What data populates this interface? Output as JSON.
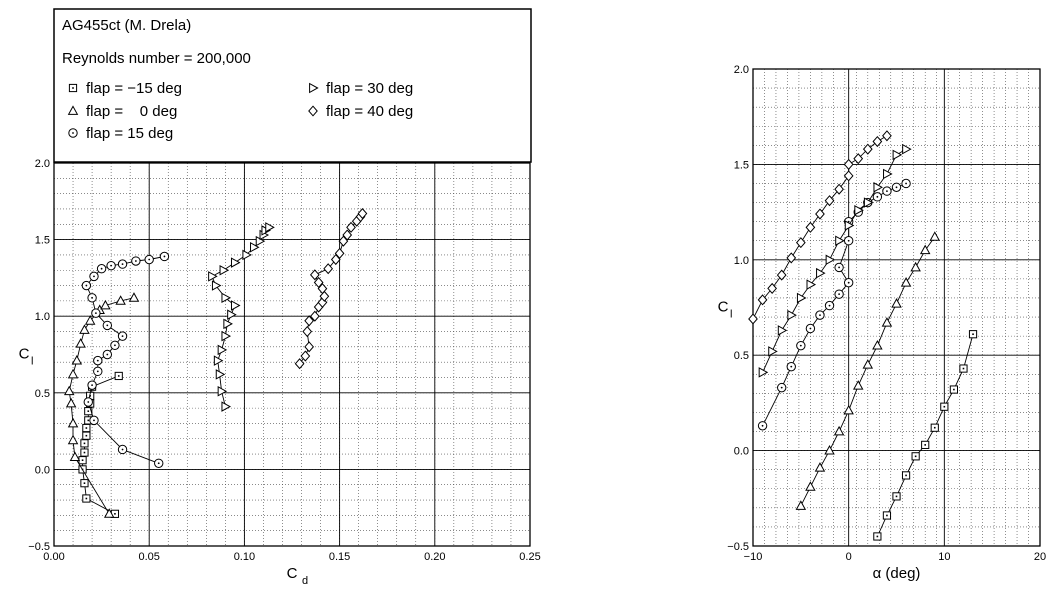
{
  "legend": {
    "title": "AG455ct (M. Drela)",
    "subtitle": "Reynolds number = 200,000",
    "entries": [
      {
        "label": "flap = −15 deg",
        "marker": "square"
      },
      {
        "label": "flap =    0 deg",
        "marker": "triangle-up"
      },
      {
        "label": "flap = 15 deg",
        "marker": "circle"
      },
      {
        "label": "flap = 30 deg",
        "marker": "triangle-right"
      },
      {
        "label": "flap = 40 deg",
        "marker": "diamond"
      }
    ]
  },
  "chart_data": [
    {
      "type": "line",
      "title": "",
      "xlabel": "C",
      "xlabel_sub": "d",
      "ylabel": "C",
      "ylabel_sub": "l",
      "xlim": [
        0.0,
        0.25
      ],
      "ylim": [
        -0.5,
        2.0
      ],
      "xticks": [
        0.0,
        0.05,
        0.1,
        0.15,
        0.2,
        0.25
      ],
      "xtick_labels": [
        "0.00",
        "0.05",
        "0.10",
        "0.15",
        "0.20",
        "0.25"
      ],
      "yticks": [
        -0.5,
        0.0,
        0.5,
        1.0,
        1.5,
        2.0
      ],
      "ytick_labels": [
        "−0.5",
        "0.0",
        "0.5",
        "1.0",
        "1.5",
        "2.0"
      ],
      "grid": true,
      "series": [
        {
          "name": "flap = −15 deg",
          "marker": "square",
          "points": [
            [
              0.032,
              -0.29
            ],
            [
              0.017,
              -0.19
            ],
            [
              0.016,
              -0.09
            ],
            [
              0.015,
              0.0
            ],
            [
              0.015,
              0.06
            ],
            [
              0.016,
              0.11
            ],
            [
              0.016,
              0.17
            ],
            [
              0.017,
              0.22
            ],
            [
              0.017,
              0.27
            ],
            [
              0.018,
              0.32
            ],
            [
              0.018,
              0.38
            ],
            [
              0.019,
              0.43
            ],
            [
              0.019,
              0.48
            ],
            [
              0.02,
              0.54
            ],
            [
              0.034,
              0.61
            ]
          ]
        },
        {
          "name": "flap = 0 deg",
          "marker": "triangle-up",
          "points": [
            [
              0.029,
              -0.29
            ],
            [
              0.011,
              0.08
            ],
            [
              0.01,
              0.19
            ],
            [
              0.01,
              0.3
            ],
            [
              0.009,
              0.43
            ],
            [
              0.008,
              0.51
            ],
            [
              0.01,
              0.62
            ],
            [
              0.012,
              0.71
            ],
            [
              0.014,
              0.82
            ],
            [
              0.016,
              0.91
            ],
            [
              0.019,
              0.97
            ],
            [
              0.024,
              1.04
            ],
            [
              0.027,
              1.07
            ],
            [
              0.035,
              1.1
            ],
            [
              0.042,
              1.12
            ]
          ]
        },
        {
          "name": "flap = 15 deg",
          "marker": "circle",
          "points": [
            [
              0.055,
              0.04
            ],
            [
              0.036,
              0.13
            ],
            [
              0.021,
              0.32
            ],
            [
              0.018,
              0.44
            ],
            [
              0.02,
              0.55
            ],
            [
              0.023,
              0.64
            ],
            [
              0.023,
              0.71
            ],
            [
              0.028,
              0.75
            ],
            [
              0.032,
              0.81
            ],
            [
              0.036,
              0.87
            ],
            [
              0.028,
              0.94
            ],
            [
              0.022,
              1.02
            ],
            [
              0.02,
              1.12
            ],
            [
              0.017,
              1.2
            ],
            [
              0.021,
              1.26
            ],
            [
              0.025,
              1.31
            ],
            [
              0.03,
              1.33
            ],
            [
              0.036,
              1.34
            ],
            [
              0.043,
              1.36
            ],
            [
              0.05,
              1.37
            ],
            [
              0.058,
              1.39
            ]
          ]
        },
        {
          "name": "flap = 30 deg",
          "marker": "triangle-right",
          "points": [
            [
              0.09,
              0.41
            ],
            [
              0.088,
              0.51
            ],
            [
              0.087,
              0.62
            ],
            [
              0.086,
              0.71
            ],
            [
              0.088,
              0.78
            ],
            [
              0.09,
              0.87
            ],
            [
              0.091,
              0.95
            ],
            [
              0.093,
              1.01
            ],
            [
              0.095,
              1.07
            ],
            [
              0.09,
              1.12
            ],
            [
              0.085,
              1.2
            ],
            [
              0.083,
              1.26
            ],
            [
              0.089,
              1.3
            ],
            [
              0.095,
              1.35
            ],
            [
              0.101,
              1.4
            ],
            [
              0.105,
              1.45
            ],
            [
              0.108,
              1.49
            ],
            [
              0.11,
              1.53
            ],
            [
              0.111,
              1.56
            ],
            [
              0.113,
              1.58
            ]
          ]
        },
        {
          "name": "flap = 40 deg",
          "marker": "diamond",
          "points": [
            [
              0.129,
              0.69
            ],
            [
              0.132,
              0.74
            ],
            [
              0.134,
              0.8
            ],
            [
              0.133,
              0.9
            ],
            [
              0.134,
              0.97
            ],
            [
              0.137,
              1.0
            ],
            [
              0.139,
              1.06
            ],
            [
              0.141,
              1.09
            ],
            [
              0.142,
              1.13
            ],
            [
              0.141,
              1.18
            ],
            [
              0.139,
              1.22
            ],
            [
              0.137,
              1.27
            ],
            [
              0.144,
              1.31
            ],
            [
              0.148,
              1.37
            ],
            [
              0.15,
              1.41
            ],
            [
              0.152,
              1.49
            ],
            [
              0.154,
              1.53
            ],
            [
              0.156,
              1.58
            ],
            [
              0.159,
              1.62
            ],
            [
              0.161,
              1.65
            ],
            [
              0.162,
              1.67
            ]
          ]
        }
      ]
    },
    {
      "type": "line",
      "title": "",
      "xlabel": "α (deg)",
      "ylabel": "C",
      "ylabel_sub": "l",
      "xlim": [
        -10,
        20
      ],
      "ylim": [
        -0.5,
        2.0
      ],
      "xticks": [
        -10,
        0,
        10,
        20
      ],
      "xtick_labels": [
        "−10",
        "0",
        "10",
        "20"
      ],
      "yticks": [
        -0.5,
        0.0,
        0.5,
        1.0,
        1.5,
        2.0
      ],
      "ytick_labels": [
        "−0.5",
        "0.0",
        "0.5",
        "1.0",
        "1.5",
        "2.0"
      ],
      "grid": true,
      "series": [
        {
          "name": "flap = −15 deg",
          "marker": "square",
          "points": [
            [
              3,
              -0.45
            ],
            [
              4,
              -0.34
            ],
            [
              5,
              -0.24
            ],
            [
              6,
              -0.13
            ],
            [
              7,
              -0.03
            ],
            [
              8,
              0.03
            ],
            [
              9,
              0.12
            ],
            [
              10,
              0.23
            ],
            [
              11,
              0.32
            ],
            [
              12,
              0.43
            ],
            [
              13,
              0.61
            ]
          ]
        },
        {
          "name": "flap = 0 deg",
          "marker": "triangle-up",
          "points": [
            [
              -5,
              -0.29
            ],
            [
              -4,
              -0.19
            ],
            [
              -3,
              -0.09
            ],
            [
              -2,
              0.0
            ],
            [
              -1,
              0.1
            ],
            [
              0,
              0.21
            ],
            [
              1,
              0.34
            ],
            [
              2,
              0.45
            ],
            [
              3,
              0.55
            ],
            [
              4,
              0.67
            ],
            [
              5,
              0.77
            ],
            [
              6,
              0.88
            ],
            [
              7,
              0.96
            ],
            [
              8,
              1.05
            ],
            [
              9,
              1.12
            ]
          ]
        },
        {
          "name": "flap = 15 deg",
          "marker": "circle",
          "points": [
            [
              -9,
              0.13
            ],
            [
              -7,
              0.33
            ],
            [
              -6,
              0.44
            ],
            [
              -5,
              0.55
            ],
            [
              -4,
              0.64
            ],
            [
              -3,
              0.71
            ],
            [
              -2,
              0.76
            ],
            [
              -1,
              0.82
            ],
            [
              0,
              0.88
            ],
            [
              -1,
              0.96
            ],
            [
              0,
              1.1
            ],
            [
              0,
              1.2
            ],
            [
              1,
              1.25
            ],
            [
              2,
              1.3
            ],
            [
              3,
              1.33
            ],
            [
              4,
              1.36
            ],
            [
              5,
              1.38
            ],
            [
              6,
              1.4
            ]
          ]
        },
        {
          "name": "flap = 30 deg",
          "marker": "triangle-right",
          "points": [
            [
              -9,
              0.41
            ],
            [
              -8,
              0.52
            ],
            [
              -7,
              0.63
            ],
            [
              -6,
              0.71
            ],
            [
              -5,
              0.8
            ],
            [
              -4,
              0.87
            ],
            [
              -3,
              0.93
            ],
            [
              -2,
              1.0
            ],
            [
              -1,
              1.1
            ],
            [
              0,
              1.18
            ],
            [
              1,
              1.26
            ],
            [
              2,
              1.3
            ],
            [
              3,
              1.38
            ],
            [
              4,
              1.45
            ],
            [
              5,
              1.55
            ],
            [
              6,
              1.58
            ]
          ]
        },
        {
          "name": "flap = 40 deg",
          "marker": "diamond",
          "points": [
            [
              -10,
              0.69
            ],
            [
              -9,
              0.79
            ],
            [
              -8,
              0.85
            ],
            [
              -7,
              0.92
            ],
            [
              -6,
              1.01
            ],
            [
              -5,
              1.09
            ],
            [
              -4,
              1.17
            ],
            [
              -3,
              1.24
            ],
            [
              -2,
              1.31
            ],
            [
              -1,
              1.37
            ],
            [
              0,
              1.44
            ],
            [
              0,
              1.5
            ],
            [
              1,
              1.53
            ],
            [
              2,
              1.58
            ],
            [
              3,
              1.62
            ],
            [
              4,
              1.65
            ]
          ]
        }
      ]
    }
  ]
}
